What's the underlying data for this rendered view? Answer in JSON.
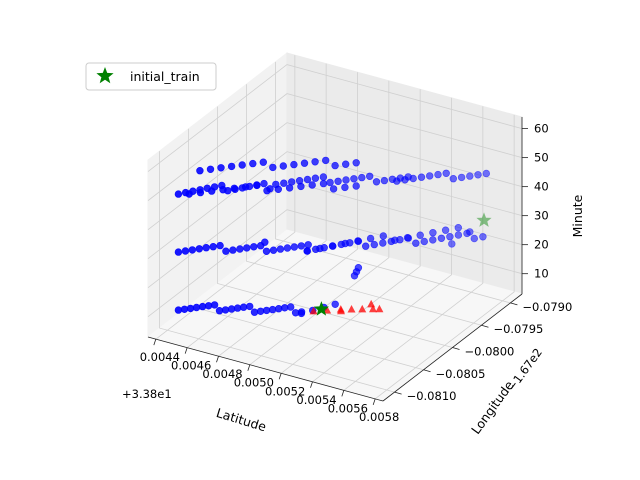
{
  "chart_data": {
    "type": "scatter",
    "projection": "3d",
    "title": "",
    "xlabel": "Latitude",
    "ylabel": "Longitude",
    "zlabel": "Minute",
    "x_offset_label": "+3.38e1",
    "y_offset_label": "−1.67e2",
    "x_ticks": [
      "0.0044",
      "0.0046",
      "0.0048",
      "0.0050",
      "0.0052",
      "0.0054",
      "0.0056",
      "0.0058"
    ],
    "y_ticks": [
      "−0.0810",
      "−0.0805",
      "−0.0800",
      "−0.0795",
      "−0.0790"
    ],
    "z_ticks": [
      "10",
      "20",
      "30",
      "40",
      "50",
      "60"
    ],
    "xlim": [
      0.00435,
      0.00585
    ],
    "ylim": [
      -0.0812,
      -0.0788
    ],
    "zlim": [
      3,
      64
    ],
    "legend": {
      "location": "upper-left",
      "entries": [
        {
          "label": "initial_train",
          "marker": "star",
          "color": "#008000"
        }
      ]
    },
    "series": [
      {
        "name": "blue points",
        "marker": "circle",
        "color": "#0000ff",
        "segments": [
          {
            "minute": 8,
            "from": [
              0.0044,
              -0.0808
            ],
            "to": [
              0.005,
              -0.0803
            ],
            "count": 22
          },
          {
            "minute": 8,
            "from": [
              0.005,
              -0.0803
            ],
            "to": [
              0.00512,
              -0.08005
            ],
            "count": 4
          },
          {
            "minute": 28,
            "from": [
              0.0044,
              -0.0808
            ],
            "to": [
              0.005,
              -0.0802
            ],
            "count": 20
          },
          {
            "minute": 28,
            "from": [
              0.005,
              -0.0802
            ],
            "to": [
              0.00575,
              -0.0792
            ],
            "count": 22
          },
          {
            "minute": 28,
            "from": [
              0.005,
              -0.0802
            ],
            "to": [
              0.00565,
              -0.07915
            ],
            "count": 14
          },
          {
            "minute": 48,
            "from": [
              0.0044,
              -0.0808
            ],
            "to": [
              0.0048,
              -0.0803
            ],
            "count": 14
          },
          {
            "minute": 48,
            "from": [
              0.0048,
              -0.0802
            ],
            "to": [
              0.0054,
              -0.07955
            ],
            "count": 18
          },
          {
            "minute": 48,
            "from": [
              0.00535,
              -0.0796
            ],
            "to": [
              0.00575,
              -0.07915
            ],
            "count": 12
          },
          {
            "minute": 48,
            "from": [
              0.00445,
              -0.08075
            ],
            "to": [
              0.0052,
              -0.0799
            ],
            "count": 16
          },
          {
            "minute": 56,
            "from": [
              0.0045,
              -0.0807
            ],
            "to": [
              0.0052,
              -0.0799
            ],
            "count": 16
          }
        ],
        "extra_points": [
          [
            0.0052,
            -0.0799,
            18
          ],
          [
            0.00522,
            -0.07992,
            20
          ],
          [
            0.00518,
            -0.07988,
            16
          ],
          [
            0.00555,
            -0.0792,
            22
          ],
          [
            0.0048,
            -0.0804,
            30
          ]
        ]
      },
      {
        "name": "red points",
        "marker": "triangle",
        "color": "#ff0000",
        "points": [
          [
            0.00505,
            -0.08,
            4
          ],
          [
            0.0051,
            -0.0799,
            3.5
          ],
          [
            0.00515,
            -0.07985,
            3.5
          ],
          [
            0.0052,
            -0.0798,
            3.5
          ],
          [
            0.00525,
            -0.07975,
            3.5
          ],
          [
            0.00522,
            -0.0797,
            4
          ],
          [
            0.00528,
            -0.07972,
            3.5
          ],
          [
            0.00512,
            -0.07995,
            4
          ],
          [
            0.005,
            -0.0801,
            4.5
          ]
        ]
      },
      {
        "name": "initial_train",
        "marker": "star",
        "color": "#008000",
        "points": [
          [
            0.00505,
            -0.0801,
            6
          ],
          [
            0.0057,
            -0.07905,
            30
          ]
        ]
      }
    ]
  }
}
